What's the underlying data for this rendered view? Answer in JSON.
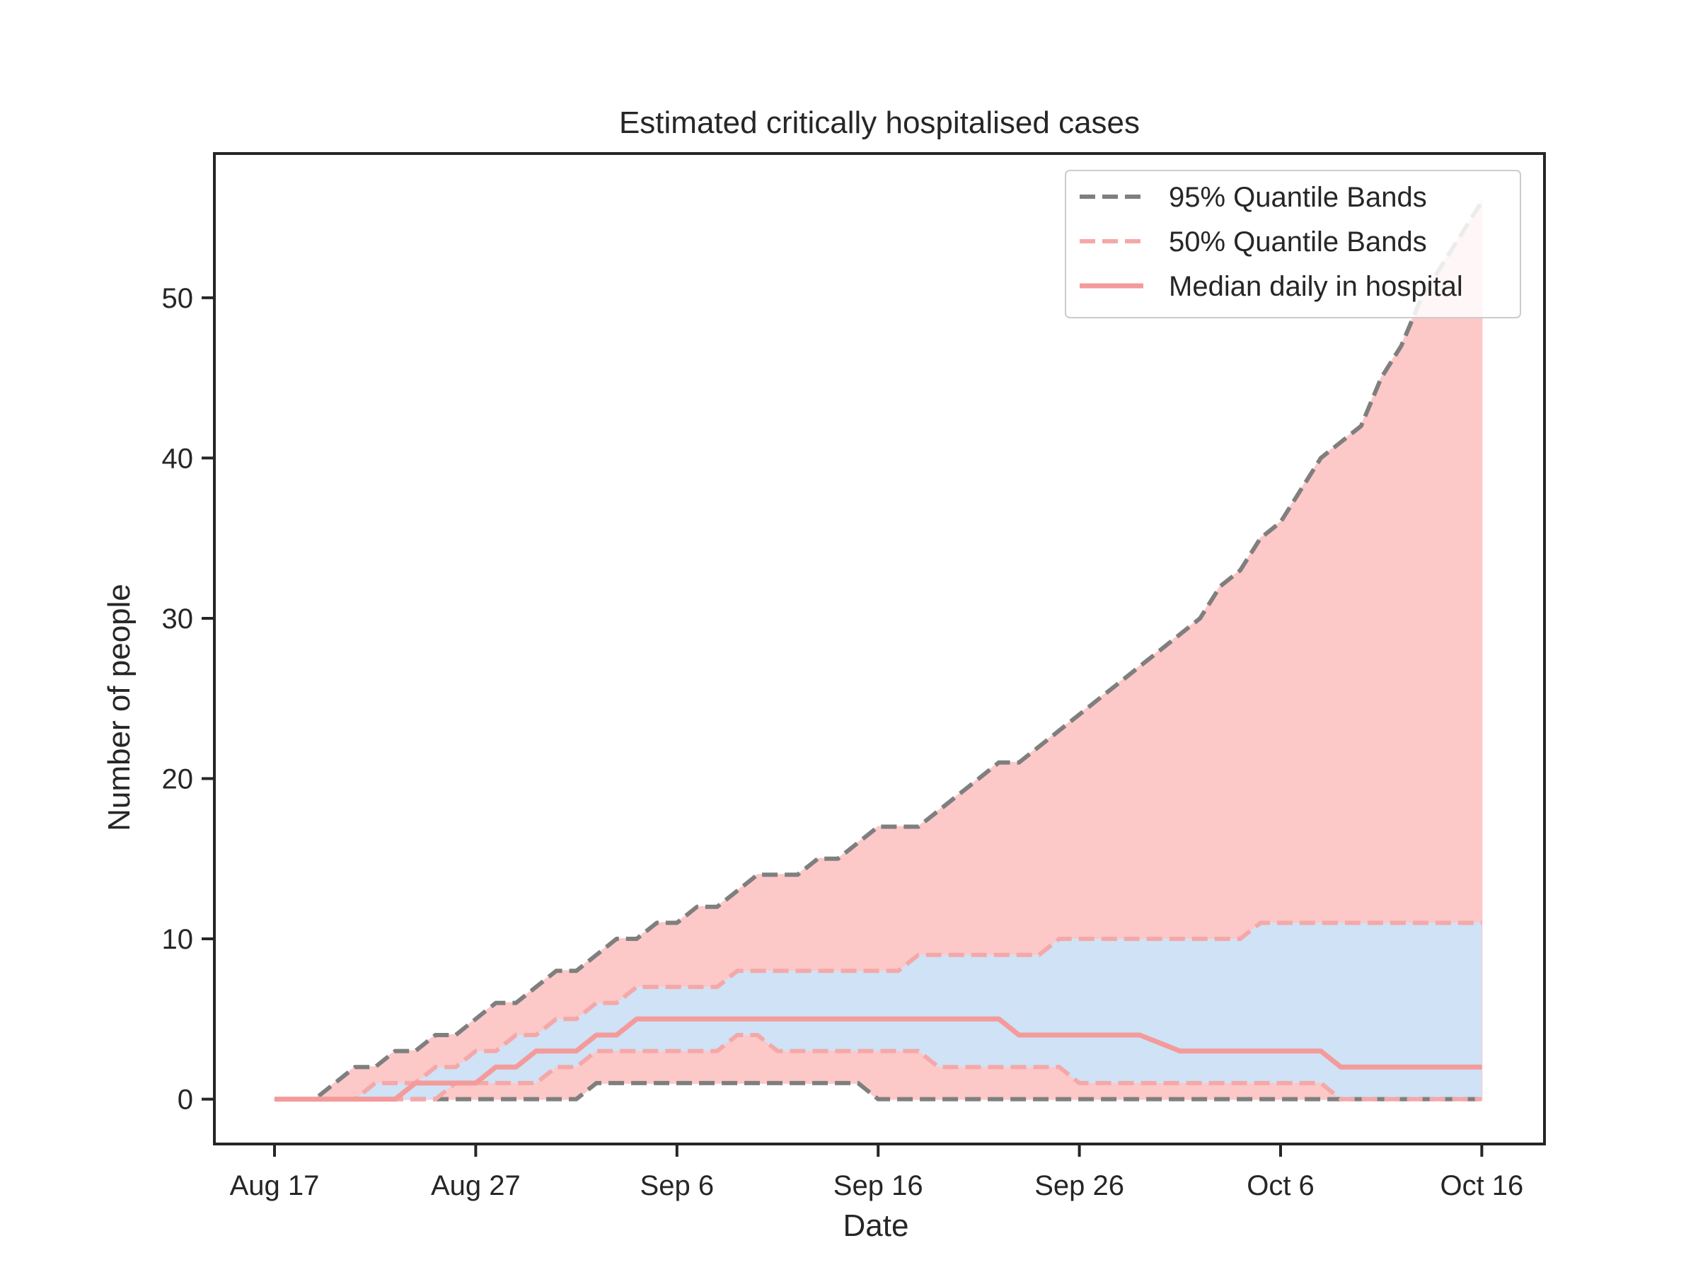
{
  "chart_data": {
    "type": "area",
    "title": "Estimated critically hospitalised cases",
    "xlabel": "Date",
    "ylabel": "Number of people",
    "x_start": "2020-08-17",
    "x_ticks": [
      "Aug 17",
      "Aug 27",
      "Sep 6",
      "Sep 16",
      "Sep 26",
      "Oct 6",
      "Oct 16"
    ],
    "y_ticks": [
      "0",
      "10",
      "20",
      "30",
      "40",
      "50"
    ],
    "ylim": [
      -2.8,
      59
    ],
    "grid": false,
    "legend": {
      "placement": "top-right",
      "entries": [
        "95% Quantile Bands",
        "50% Quantile Bands",
        "Median daily in hospital"
      ]
    },
    "colors": {
      "band95_fill": "#fcc8c8",
      "band50_fill": "#cfe2f6",
      "line95": "#7f7f7f",
      "line50": "#f5a8a8",
      "median": "#f59a9a",
      "axis": "#262626"
    },
    "series": [
      {
        "name": "95% upper",
        "values": [
          0,
          0,
          0,
          1,
          2,
          2,
          3,
          3,
          4,
          4,
          5,
          6,
          6,
          7,
          8,
          8,
          9,
          10,
          10,
          11,
          11,
          12,
          12,
          13,
          14,
          14,
          14,
          15,
          15,
          16,
          17,
          17,
          17,
          18,
          19,
          20,
          21,
          21,
          22,
          23,
          24,
          25,
          26,
          27,
          28,
          29,
          30,
          32,
          33,
          35,
          36,
          38,
          40,
          41,
          42,
          45,
          47,
          50,
          52,
          54,
          56
        ]
      },
      {
        "name": "50% upper",
        "values": [
          0,
          0,
          0,
          0,
          0,
          1,
          1,
          1,
          2,
          2,
          3,
          3,
          4,
          4,
          5,
          5,
          6,
          6,
          7,
          7,
          7,
          7,
          7,
          8,
          8,
          8,
          8,
          8,
          8,
          8,
          8,
          8,
          9,
          9,
          9,
          9,
          9,
          9,
          9,
          10,
          10,
          10,
          10,
          10,
          10,
          10,
          10,
          10,
          10,
          11,
          11,
          11,
          11,
          11,
          11,
          11,
          11,
          11,
          11,
          11,
          11
        ]
      },
      {
        "name": "Median daily in hospital",
        "values": [
          0,
          0,
          0,
          0,
          0,
          0,
          0,
          1,
          1,
          1,
          1,
          2,
          2,
          3,
          3,
          3,
          4,
          4,
          5,
          5,
          5,
          5,
          5,
          5,
          5,
          5,
          5,
          5,
          5,
          5,
          5,
          5,
          5,
          5,
          5,
          5,
          5,
          4,
          4,
          4,
          4,
          4,
          4,
          4,
          3.5,
          3,
          3,
          3,
          3,
          3,
          3,
          3,
          3,
          2,
          2,
          2,
          2,
          2,
          2,
          2,
          2
        ]
      },
      {
        "name": "50% lower",
        "values": [
          0,
          0,
          0,
          0,
          0,
          0,
          0,
          0,
          0,
          1,
          1,
          1,
          1,
          1,
          2,
          2,
          3,
          3,
          3,
          3,
          3,
          3,
          3,
          4,
          4,
          3,
          3,
          3,
          3,
          3,
          3,
          3,
          3,
          2,
          2,
          2,
          2,
          2,
          2,
          2,
          1,
          1,
          1,
          1,
          1,
          1,
          1,
          1,
          1,
          1,
          1,
          1,
          1,
          0,
          0,
          0,
          0,
          0,
          0,
          0,
          0
        ]
      },
      {
        "name": "95% lower",
        "values": [
          0,
          0,
          0,
          0,
          0,
          0,
          0,
          0,
          0,
          0,
          0,
          0,
          0,
          0,
          0,
          0,
          1,
          1,
          1,
          1,
          1,
          1,
          1,
          1,
          1,
          1,
          1,
          1,
          1,
          1,
          0,
          0,
          0,
          0,
          0,
          0,
          0,
          0,
          0,
          0,
          0,
          0,
          0,
          0,
          0,
          0,
          0,
          0,
          0,
          0,
          0,
          0,
          0,
          0,
          0,
          0,
          0,
          0,
          0,
          0,
          0
        ]
      }
    ]
  }
}
